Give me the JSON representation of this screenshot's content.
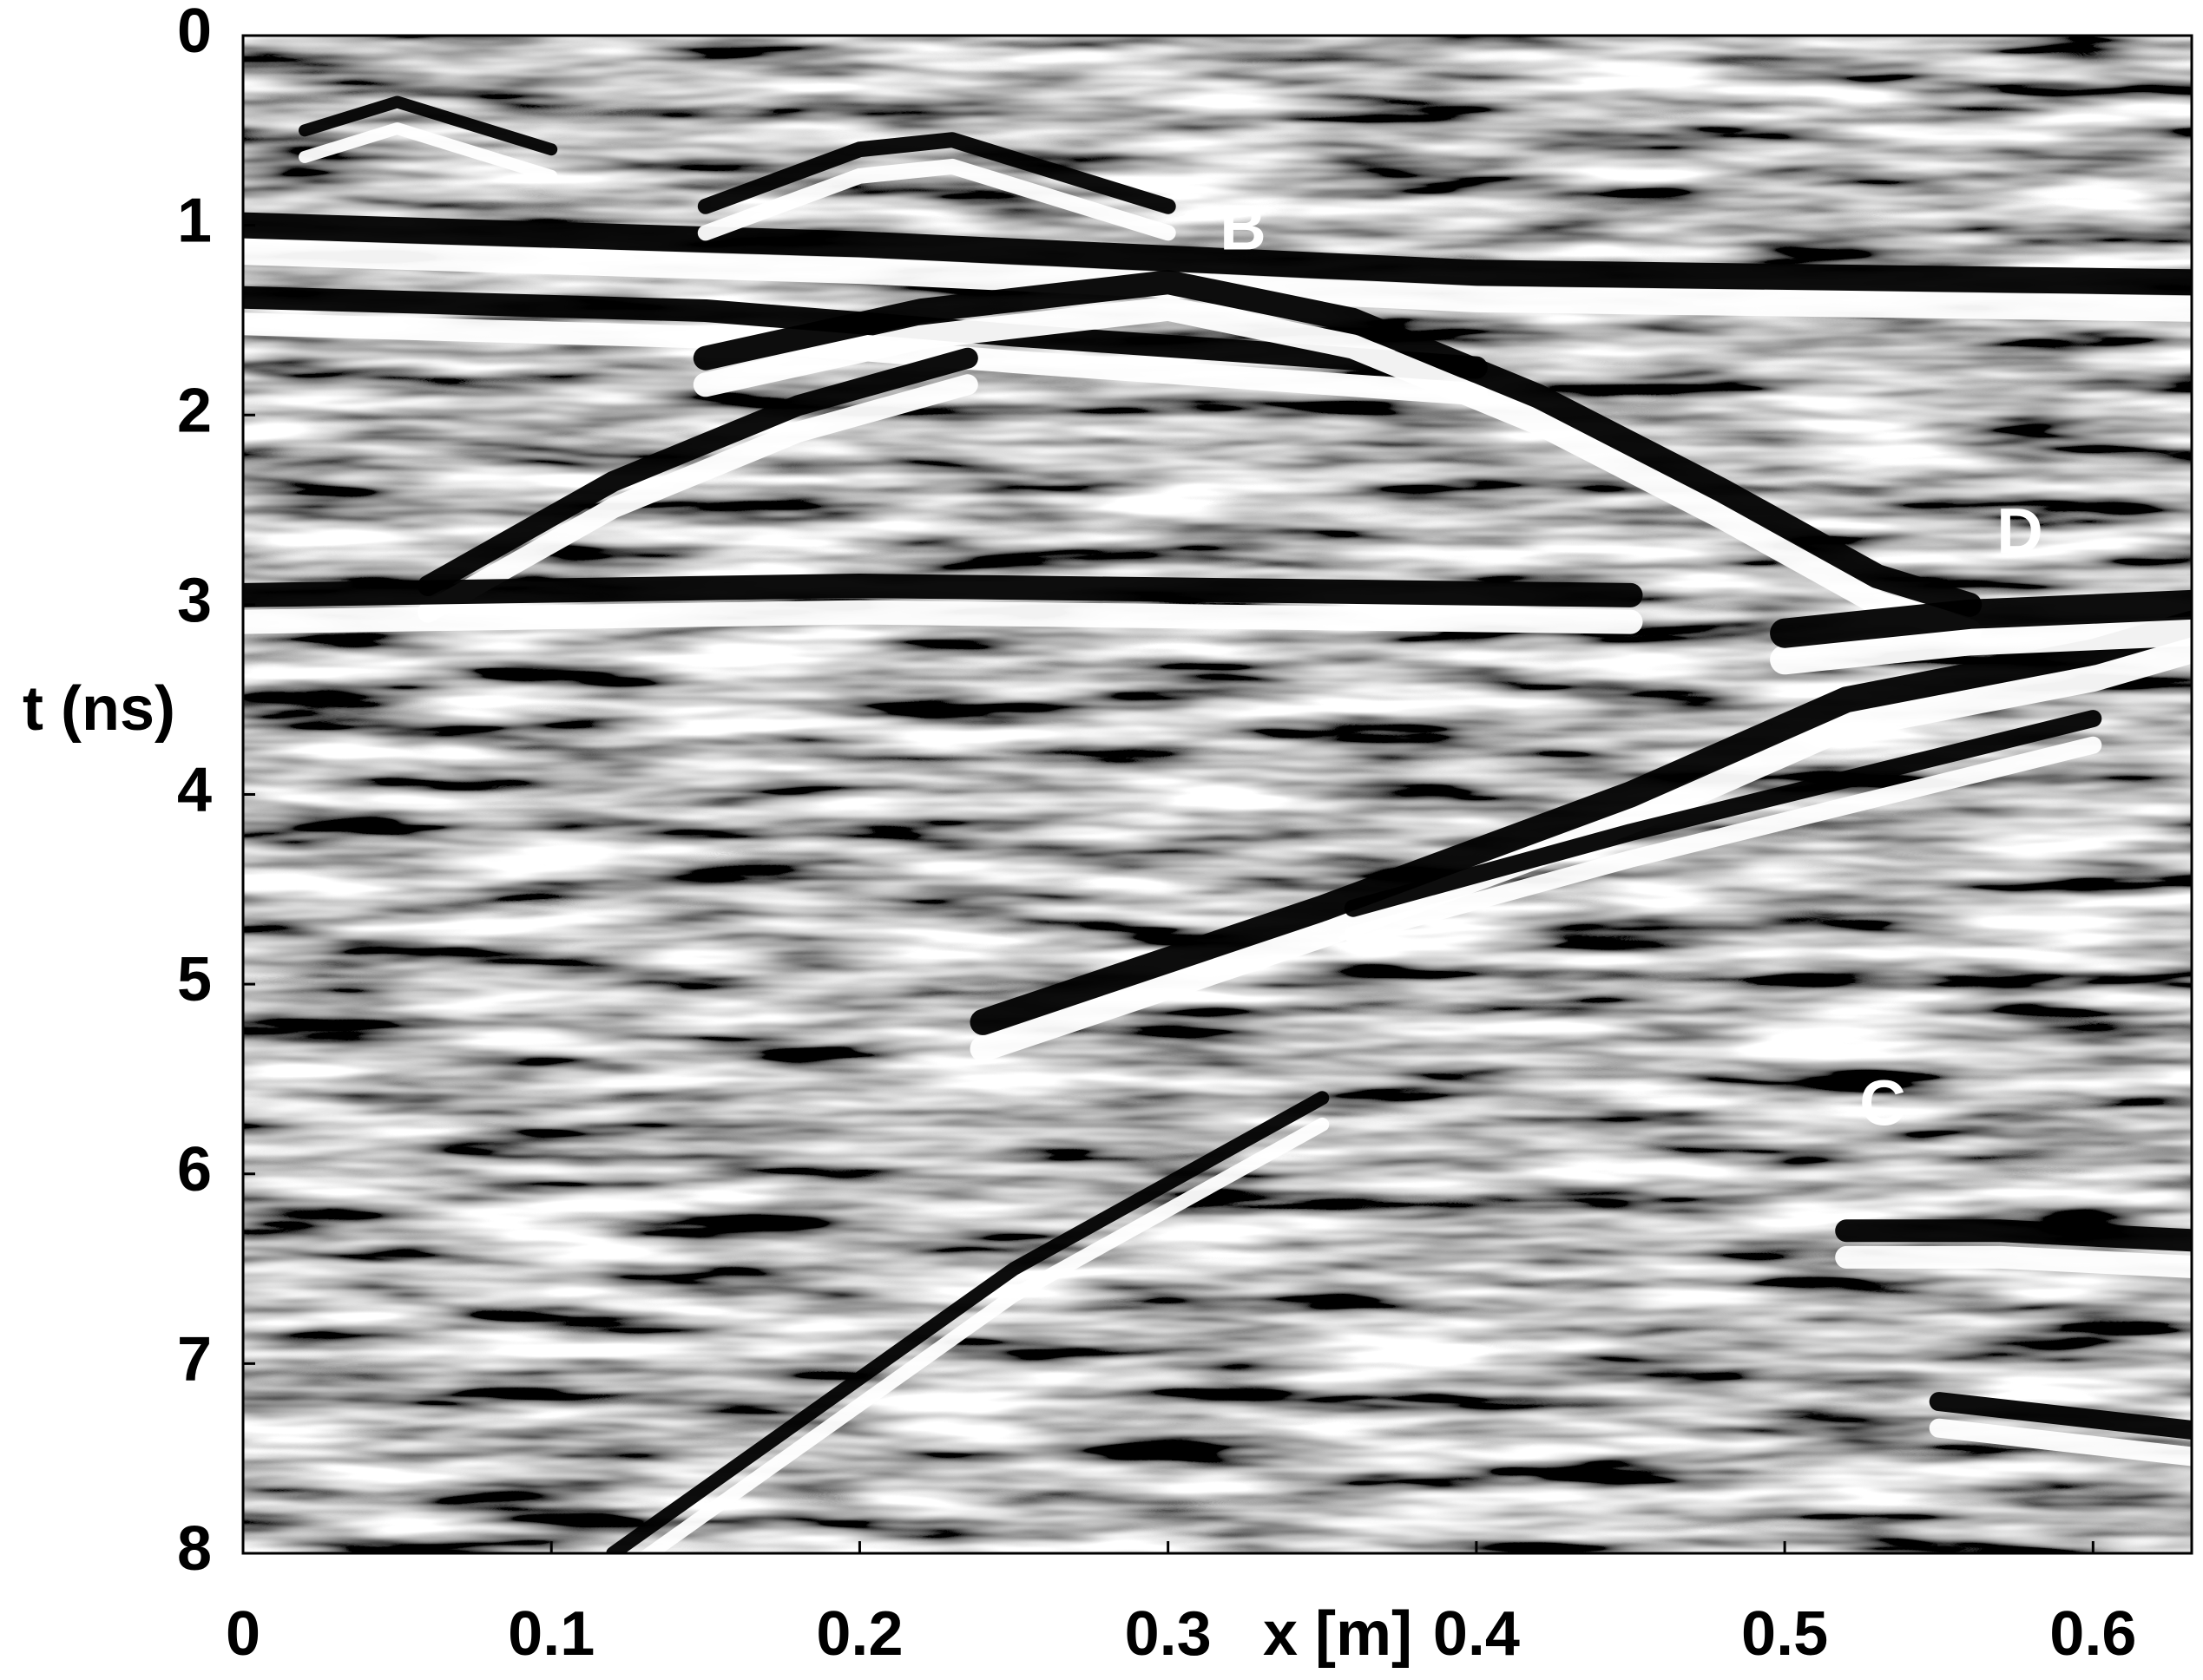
{
  "chart_data": {
    "type": "radargram",
    "xlabel": "x [m]",
    "ylabel": "t (ns)",
    "xlim": [
      0,
      0.632
    ],
    "xticks": [
      0,
      0.1,
      0.2,
      0.3,
      0.4,
      0.5,
      0.6
    ],
    "ylim": [
      0,
      8
    ],
    "yticks": [
      0,
      1,
      2,
      3,
      4,
      5,
      6,
      7,
      8
    ],
    "y_inverted": true,
    "annotations": [
      "B",
      "D",
      "C"
    ]
  }
}
